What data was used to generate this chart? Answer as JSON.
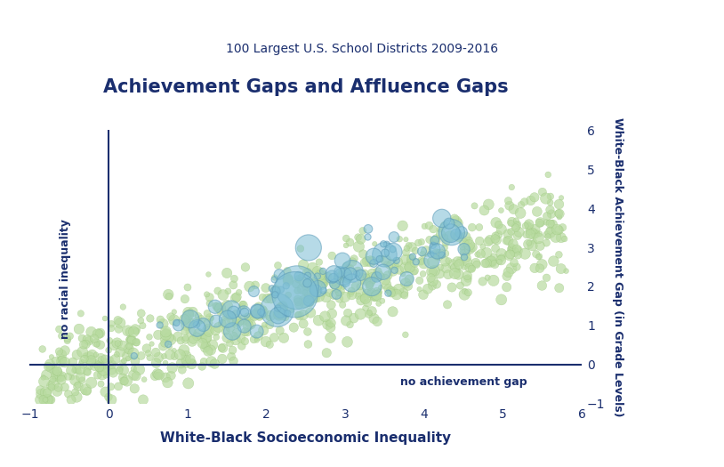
{
  "title": "Achievement Gaps and Affluence Gaps",
  "subtitle": "100 Largest U.S. School Districts 2009-2016",
  "xlabel": "White-Black Socioeconomic Inequality",
  "ylabel_right": "White-Black Achievement Gap (in Grade Levels)",
  "xlim": [
    -1,
    6
  ],
  "ylim": [
    -1,
    6
  ],
  "xticks": [
    -1,
    0,
    1,
    2,
    3,
    4,
    5,
    6
  ],
  "yticks": [
    -1,
    0,
    1,
    2,
    3,
    4,
    5,
    6
  ],
  "label_no_racial": "no racial inequality",
  "label_no_achievement": "no achievement gap",
  "bg_color": "#ffffff",
  "title_color": "#1a2e6e",
  "subtitle_color": "#1a2e6e",
  "label_color": "#1a2e6e",
  "tick_color": "#1a2e6e",
  "small_dot_color": "#b8dba0",
  "small_dot_edge": "#9dc87f",
  "large_dot_color": "#7bbdd4",
  "large_dot_edge": "#5a9ab8",
  "vline_color": "#1a2e6e",
  "hline_color": "#1a2e6e",
  "seed": 42,
  "n_background": 800,
  "n_large": 100
}
